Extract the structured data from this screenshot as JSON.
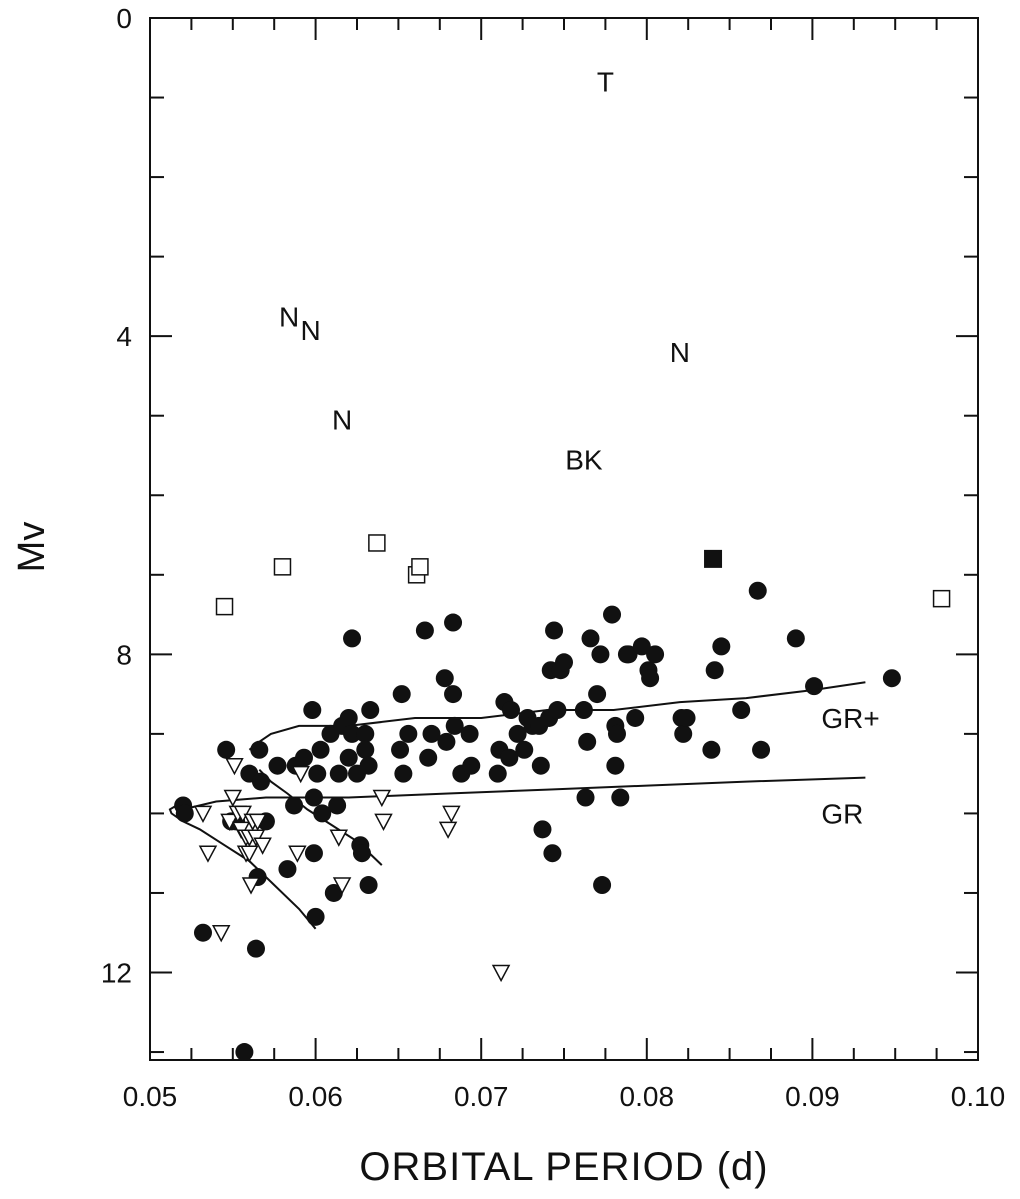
{
  "chart_data": {
    "type": "scatter",
    "xlabel": "ORBITAL  PERIOD (d)",
    "ylabel": "Mv",
    "xlim": [
      0.05,
      0.1
    ],
    "ylim": [
      0,
      13.1
    ],
    "y_inverted": true,
    "x_ticks": [
      "0.05",
      "0.06",
      "0.07",
      "0.08",
      "0.09",
      "0.10"
    ],
    "x_tick_values": [
      0.05,
      0.06,
      0.07,
      0.08,
      0.09,
      0.1
    ],
    "y_ticks": [
      "0",
      "4",
      "8",
      "12"
    ],
    "y_tick_values": [
      0,
      4,
      8,
      12
    ],
    "grid": false,
    "series": [
      {
        "marker": "filled-circle",
        "points": [
          [
            0.052,
            9.9
          ],
          [
            0.0521,
            10.0
          ],
          [
            0.0532,
            11.5
          ],
          [
            0.0546,
            9.2
          ],
          [
            0.0549,
            10.1
          ],
          [
            0.0552,
            10.1
          ],
          [
            0.0557,
            13.0
          ],
          [
            0.056,
            9.5
          ],
          [
            0.0564,
            11.7
          ],
          [
            0.0565,
            10.8
          ],
          [
            0.0566,
            9.2
          ],
          [
            0.0567,
            9.6
          ],
          [
            0.057,
            10.1
          ],
          [
            0.0577,
            9.4
          ],
          [
            0.0583,
            10.7
          ],
          [
            0.0587,
            9.9
          ],
          [
            0.0588,
            9.4
          ],
          [
            0.0593,
            9.3
          ],
          [
            0.0598,
            8.7
          ],
          [
            0.0599,
            10.5
          ],
          [
            0.0599,
            9.8
          ],
          [
            0.06,
            11.3
          ],
          [
            0.0601,
            9.5
          ],
          [
            0.0603,
            9.2
          ],
          [
            0.0604,
            10.0
          ],
          [
            0.0609,
            9.0
          ],
          [
            0.0611,
            11.0
          ],
          [
            0.0613,
            9.9
          ],
          [
            0.0614,
            9.5
          ],
          [
            0.0616,
            8.9
          ],
          [
            0.062,
            9.3
          ],
          [
            0.062,
            8.8
          ],
          [
            0.0622,
            9.0
          ],
          [
            0.0622,
            7.8
          ],
          [
            0.0625,
            9.5
          ],
          [
            0.0627,
            10.4
          ],
          [
            0.0628,
            10.5
          ],
          [
            0.063,
            9.0
          ],
          [
            0.063,
            9.2
          ],
          [
            0.0632,
            9.4
          ],
          [
            0.0632,
            10.9
          ],
          [
            0.0633,
            8.7
          ],
          [
            0.0651,
            9.2
          ],
          [
            0.0652,
            8.5
          ],
          [
            0.0653,
            9.5
          ],
          [
            0.0656,
            9.0
          ],
          [
            0.0666,
            7.7
          ],
          [
            0.0668,
            9.3
          ],
          [
            0.067,
            9.0
          ],
          [
            0.0678,
            8.3
          ],
          [
            0.0679,
            9.1
          ],
          [
            0.0683,
            8.5
          ],
          [
            0.0683,
            7.6
          ],
          [
            0.0684,
            8.9
          ],
          [
            0.0688,
            9.5
          ],
          [
            0.0693,
            9.0
          ],
          [
            0.0694,
            9.4
          ],
          [
            0.071,
            9.5
          ],
          [
            0.0711,
            9.2
          ],
          [
            0.0714,
            8.6
          ],
          [
            0.0717,
            9.3
          ],
          [
            0.0718,
            8.7
          ],
          [
            0.0722,
            9.0
          ],
          [
            0.0726,
            9.2
          ],
          [
            0.0728,
            8.8
          ],
          [
            0.0731,
            8.9
          ],
          [
            0.0735,
            8.9
          ],
          [
            0.0736,
            9.4
          ],
          [
            0.0737,
            10.2
          ],
          [
            0.0741,
            8.8
          ],
          [
            0.0742,
            8.2
          ],
          [
            0.0743,
            10.5
          ],
          [
            0.0744,
            7.7
          ],
          [
            0.0746,
            8.7
          ],
          [
            0.0748,
            8.2
          ],
          [
            0.075,
            8.1
          ],
          [
            0.0762,
            8.7
          ],
          [
            0.0763,
            9.8
          ],
          [
            0.0764,
            9.1
          ],
          [
            0.0766,
            7.8
          ],
          [
            0.077,
            8.5
          ],
          [
            0.0772,
            8.0
          ],
          [
            0.0773,
            10.9
          ],
          [
            0.0779,
            7.5
          ],
          [
            0.0781,
            8.9
          ],
          [
            0.0781,
            9.4
          ],
          [
            0.0782,
            9.0
          ],
          [
            0.0784,
            9.8
          ],
          [
            0.0788,
            8.0
          ],
          [
            0.0789,
            8.0
          ],
          [
            0.0793,
            8.8
          ],
          [
            0.0797,
            7.9
          ],
          [
            0.0801,
            8.2
          ],
          [
            0.0802,
            8.3
          ],
          [
            0.0805,
            8.0
          ],
          [
            0.0821,
            8.8
          ],
          [
            0.0822,
            9.0
          ],
          [
            0.0824,
            8.8
          ],
          [
            0.0839,
            9.2
          ],
          [
            0.0841,
            8.2
          ],
          [
            0.0845,
            7.9
          ],
          [
            0.0857,
            8.7
          ],
          [
            0.0867,
            7.2
          ],
          [
            0.0869,
            9.2
          ],
          [
            0.089,
            7.8
          ],
          [
            0.0901,
            8.4
          ],
          [
            0.0948,
            8.3
          ]
        ]
      },
      {
        "marker": "open-triangle-down",
        "points": [
          [
            0.0532,
            10.0
          ],
          [
            0.0535,
            10.5
          ],
          [
            0.0543,
            11.5
          ],
          [
            0.0548,
            10.1
          ],
          [
            0.055,
            9.8
          ],
          [
            0.0551,
            9.4
          ],
          [
            0.0553,
            10.0
          ],
          [
            0.0555,
            10.2
          ],
          [
            0.0556,
            10.0
          ],
          [
            0.0558,
            10.3
          ],
          [
            0.0558,
            10.5
          ],
          [
            0.056,
            10.5
          ],
          [
            0.056,
            10.3
          ],
          [
            0.0561,
            10.9
          ],
          [
            0.0562,
            10.1
          ],
          [
            0.0564,
            10.3
          ],
          [
            0.0565,
            10.1
          ],
          [
            0.0568,
            10.4
          ],
          [
            0.0589,
            10.5
          ],
          [
            0.0591,
            9.5
          ],
          [
            0.0614,
            10.3
          ],
          [
            0.0616,
            10.9
          ],
          [
            0.064,
            9.8
          ],
          [
            0.0641,
            10.1
          ],
          [
            0.068,
            10.2
          ],
          [
            0.0682,
            10.0
          ],
          [
            0.0712,
            12.0
          ]
        ]
      },
      {
        "marker": "open-square",
        "points": [
          [
            0.0545,
            7.4
          ],
          [
            0.058,
            6.9
          ],
          [
            0.0637,
            6.6
          ],
          [
            0.0661,
            7.0
          ],
          [
            0.0663,
            6.9
          ],
          [
            0.0978,
            7.3
          ]
        ]
      },
      {
        "marker": "filled-square",
        "points": [
          [
            0.084,
            6.8
          ]
        ]
      }
    ],
    "curves": [
      {
        "label": "GR+",
        "points": [
          [
            0.056,
            9.2
          ],
          [
            0.0566,
            9.1
          ],
          [
            0.0573,
            9.0
          ],
          [
            0.059,
            8.9
          ],
          [
            0.062,
            8.9
          ],
          [
            0.066,
            8.8
          ],
          [
            0.07,
            8.8
          ],
          [
            0.074,
            8.7
          ],
          [
            0.078,
            8.7
          ],
          [
            0.082,
            8.6
          ],
          [
            0.086,
            8.55
          ],
          [
            0.09,
            8.45
          ],
          [
            0.0932,
            8.35
          ]
        ]
      },
      {
        "label": "GR",
        "points": [
          [
            0.052,
            9.95
          ],
          [
            0.054,
            9.85
          ],
          [
            0.057,
            9.8
          ],
          [
            0.062,
            9.8
          ],
          [
            0.068,
            9.75
          ],
          [
            0.074,
            9.7
          ],
          [
            0.08,
            9.65
          ],
          [
            0.086,
            9.6
          ],
          [
            0.0932,
            9.55
          ]
        ]
      },
      {
        "label": "",
        "points": [
          [
            0.06,
            11.45
          ],
          [
            0.059,
            11.2
          ],
          [
            0.0575,
            10.9
          ],
          [
            0.056,
            10.6
          ],
          [
            0.0545,
            10.4
          ],
          [
            0.053,
            10.2
          ],
          [
            0.052,
            10.1
          ],
          [
            0.0513,
            10.0
          ],
          [
            0.0512,
            9.95
          ],
          [
            0.0516,
            9.9
          ]
        ]
      },
      {
        "label": "",
        "points": [
          [
            0.0566,
            9.45
          ],
          [
            0.0573,
            9.6
          ],
          [
            0.0583,
            9.75
          ],
          [
            0.0595,
            9.95
          ],
          [
            0.061,
            10.15
          ],
          [
            0.0625,
            10.35
          ],
          [
            0.064,
            10.65
          ]
        ]
      }
    ],
    "annotations": [
      {
        "text": "T",
        "x": 0.0775,
        "y": 0.8
      },
      {
        "text": "N",
        "x": 0.0584,
        "y": 3.75
      },
      {
        "text": "N",
        "x": 0.0597,
        "y": 3.92
      },
      {
        "text": "N",
        "x": 0.082,
        "y": 4.2
      },
      {
        "text": "N",
        "x": 0.0616,
        "y": 5.05
      },
      {
        "text": "BK",
        "x": 0.0762,
        "y": 5.55
      }
    ]
  }
}
